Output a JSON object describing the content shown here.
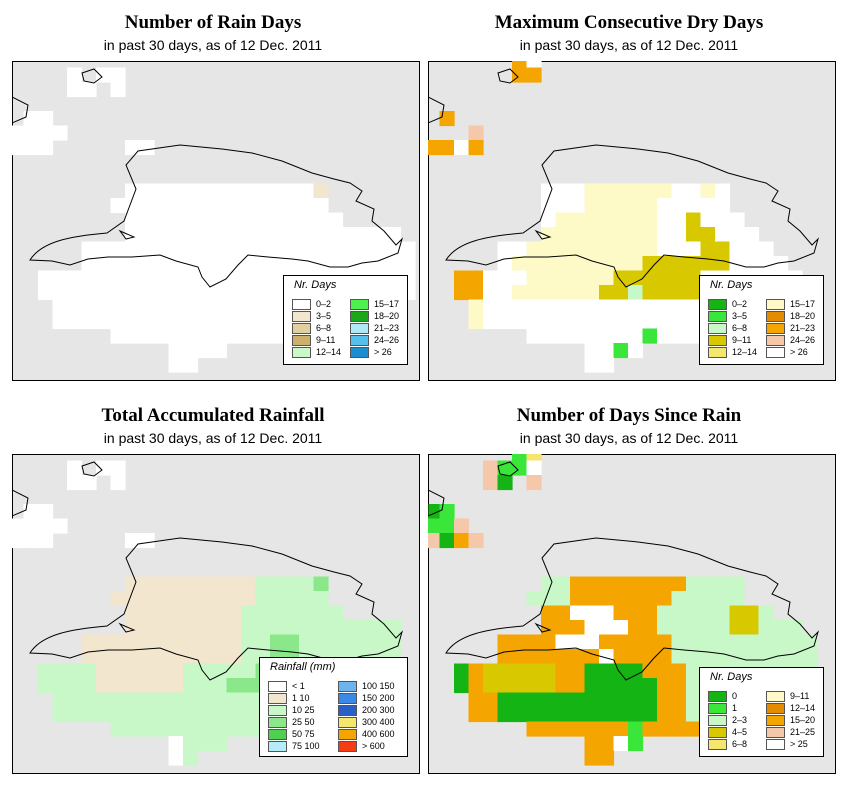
{
  "colors": {
    "background": "#e6e6e6",
    "coast": "#000000"
  },
  "panels": [
    {
      "title": "Number of Rain Days",
      "subtitle": "in past 30 days, as of  12 Dec. 2011",
      "legend_title": "Nr. Days",
      "legend": [
        {
          "label": "0–2",
          "color": "#ffffff"
        },
        {
          "label": "3–5",
          "color": "#f2e6ce"
        },
        {
          "label": "6–8",
          "color": "#e1cfa0"
        },
        {
          "label": "9–11",
          "color": "#cdb06a"
        },
        {
          "label": "12–14",
          "color": "#ccf7c8"
        },
        {
          "label": "15–17",
          "color": "#4ef04e"
        },
        {
          "label": "18–20",
          "color": "#1aa81a"
        },
        {
          "label": "21–23",
          "color": "#b0e8f6"
        },
        {
          "label": "24–26",
          "color": "#55c0ec"
        },
        {
          "label": "> 26",
          "color": "#1a8ed0"
        }
      ],
      "grid_data": [
        "...........................",
        "....W.WW...................",
        "....WW.W...................",
        "...........................",
        ".WW........................",
        "WWWW.......................",
        "WWW.....WW.................",
        "...........................",
        "...........................",
        "........WWWWWWWWWAAAAB.....",
        ".......WWWWWWWWWWAAAAA.....",
        "........WWWWWWWWAAAAAAA....",
        "........WWWWWWWWAAAAAAAAAAA",
        ".....WWWWWWWWWWWAAAAAAAAAAAA",
        ".....WWWWWWWWWWWAAAAAAAAAAAA",
        "..AAAAWWWWWWWWWWAAAAAAAAAAAA",
        "..AAAAWWWWWWWWWWAAAAAAAAAAAA",
        "...AAAAAAAAAAAAAAAAAAAAAAA..",
        "...AAAAAAAAAAAAAAAAAAAAAAA..",
        ".......AAAAAAAAAAAAAA......",
        "...........WAAA...........",
        "...........WA..............."
      ]
    },
    {
      "title": "Maximum Consecutive Dry Days",
      "subtitle": "in past 30 days, as of  12 Dec. 2011",
      "legend_title": "Nr. Days",
      "legend": [
        {
          "label": "0–2",
          "color": "#15b415"
        },
        {
          "label": "3–5",
          "color": "#3be63b"
        },
        {
          "label": "6–8",
          "color": "#c8f7c8"
        },
        {
          "label": "9–11",
          "color": "#d8c800"
        },
        {
          "label": "12–14",
          "color": "#f5e66e"
        },
        {
          "label": "15–17",
          "color": "#fdfac8"
        },
        {
          "label": "18–20",
          "color": "#e38c00"
        },
        {
          "label": "21–23",
          "color": "#f5a500"
        },
        {
          "label": "24–26",
          "color": "#f5c8aa"
        },
        {
          "label": "> 26",
          "color": "#ffffff"
        }
      ],
      "grid_data": [
        "......HJ...................",
        "......HH...................",
        "...........................",
        "...........................",
        "OH.........................",
        "OOOI.......................",
        "HHJH.......................",
        "...........................",
        "...........................",
        "........JJJFFFFFFJJFJ......",
        "........JJJFFFFFJJJJJ......",
        "........JFFFFFFFJJDJJJ.....",
        "........FFFFFFFFJJDDJJJ....",
        ".....JJFFFFFFFFFJJJDDJJJ...",
        ".....JFFFFFFFFFDDDDDDJJJJ..",
        "..HHJJJFFFFFFDDDDDDJJJJJJJ.",
        "..HHJJFFFFFFDDCDDDDJJJJJJJ.",
        "...FJJJJJJJJJJJJJJJJJJJJJJ.",
        "...FJJJJJJJJJJJJJJJJJJJJJ..",
        ".......JJJJJJJJBJJJJ.......",
        "...........JJBJ............",
        "...........JJ.............."
      ]
    },
    {
      "title": "Total Accumulated Rainfall",
      "subtitle": "in past 30 days, as of  12 Dec. 2011",
      "legend_title": "Rainfall (mm)",
      "legend": [
        {
          "label": "< 1",
          "color": "#ffffff"
        },
        {
          "label": "1    10",
          "color": "#f2e6ce"
        },
        {
          "label": "10    25",
          "color": "#c8f7c8"
        },
        {
          "label": "25    50",
          "color": "#8ae88a"
        },
        {
          "label": "50    75",
          "color": "#4fd04f"
        },
        {
          "label": "75    100",
          "color": "#b4ecf8"
        },
        {
          "label": "100    150",
          "color": "#6eb4ec"
        },
        {
          "label": "150    200",
          "color": "#3c88e6"
        },
        {
          "label": "200    300",
          "color": "#2860c8"
        },
        {
          "label": "300    400",
          "color": "#f5e66e"
        },
        {
          "label": "400    600",
          "color": "#f5a500"
        },
        {
          "label": "> 600",
          "color": "#f53c14"
        }
      ],
      "grid_data": [
        "...........................",
        "....W.WW...................",
        "....WW.W...................",
        "...........................",
        ".WW........................",
        "WWWW.......................",
        "WWW.....WW.................",
        "...........................",
        "...........................",
        "........BBBBBBBBBCCCCD.....",
        ".......BBBBBBBBBBCCCCC.....",
        "........BBBBBBBBCCCCCCC....",
        "........BBBBBBBBCCCCCCCCCCC",
        ".....BBBBBBBBBBBCCDDCCCCCCC",
        ".....BBBBBBBBBBBCCDDCCCCCCC",
        "..CCCCBBBBBBCCCCCDDDDCCCCCB",
        "..CCCCBBBBBBCCCDDDDDDCCCCCB",
        "...CCCCCCCCCCCCCCCCCCCCCC..",
        "...CCCCCCCCCCCCCCCCCCCCCC..",
        ".......CCCCCCCCCCCCCC......",
        "...........WCCC...........",
        "...........WC.............."
      ]
    },
    {
      "title": "Number of Days Since Rain",
      "subtitle": "in past 30 days, as of  12 Dec. 2011",
      "legend_title": "Nr. Days",
      "legend": [
        {
          "label": "0",
          "color": "#15b415"
        },
        {
          "label": "1",
          "color": "#3be63b"
        },
        {
          "label": "2–3",
          "color": "#c8f7c8"
        },
        {
          "label": "4–5",
          "color": "#d8c800"
        },
        {
          "label": "6–8",
          "color": "#f5e66e"
        },
        {
          "label": "9–11",
          "color": "#fdfac8"
        },
        {
          "label": "12–14",
          "color": "#e38c00"
        },
        {
          "label": "15–20",
          "color": "#f5a500"
        },
        {
          "label": "21–25",
          "color": "#f5c8aa"
        },
        {
          "label": "> 25",
          "color": "#ffffff"
        }
      ],
      "grid_data": [
        "......BE...................",
        "....IBBJ...................",
        "....IA.I...................",
        "...........................",
        "AB.........................",
        "BBI........................",
        "IAHI.......................",
        "...........................",
        "...........................",
        "........CCHHHHHHHHCCCC.....",
        ".......CCCHHHHHHHCCCCC.....",
        "........HHWWWHHHCCCCCDDC...",
        "........HHHWWWHHCCCCCDDCCC.",
        ".....HHHHWWWHHHHHCCCCCCCCCC",
        ".....HHHHHHHWHHHHCCCCCCCCCC",
        "..AHDDDDDHHAAAAHHHCCCCCCCCC",
        "..AHDDDDDHHAAAAAHHCCCCCCCCC",
        "...HHAAAAAAAAAAAHHCCCCHHC..",
        "...HHAAAAAAAAAAAHHCCCHH....",
        ".......HHHHHHHBHHHHH.......",
        "...........HHWB............",
        "...........HH.............."
      ]
    }
  ]
}
